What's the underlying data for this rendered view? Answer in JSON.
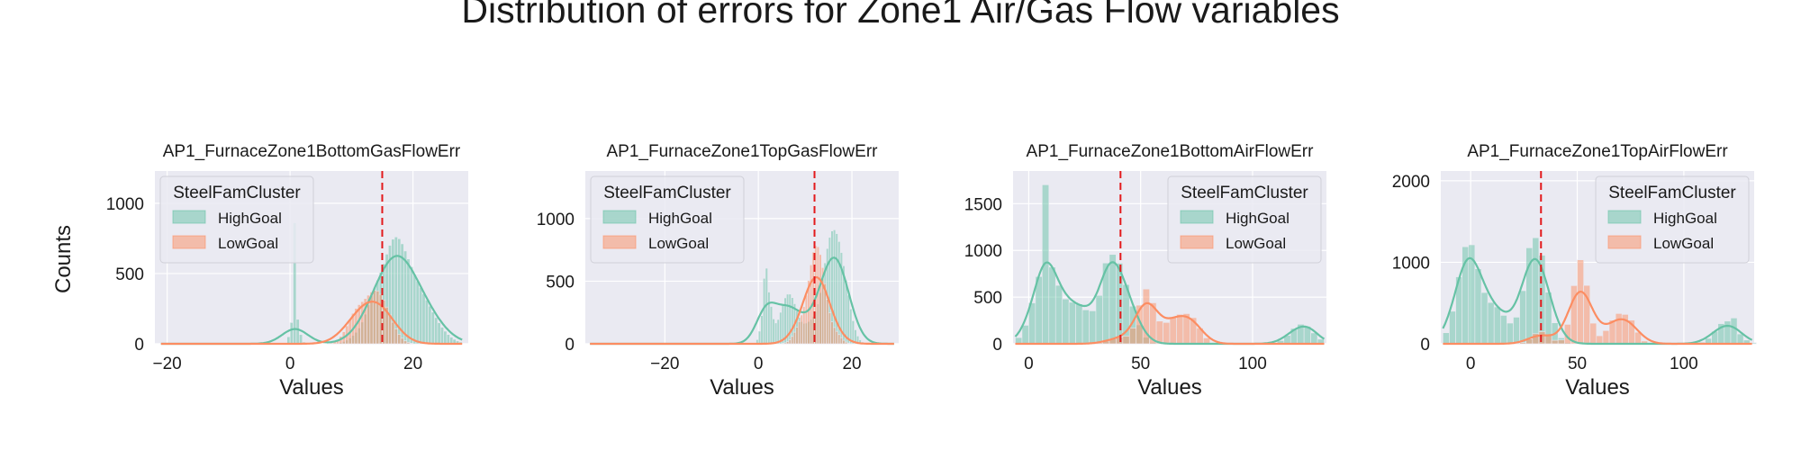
{
  "figure": {
    "title": "Distribution of errors for Zone1 Air/Gas Flow variables",
    "shared_ylabel": "Counts",
    "colors": {
      "HighGoal": "#66c2a5",
      "LowGoal": "#fc8d62",
      "axes_bg": "#eaeaf2",
      "grid": "#ffffff",
      "threshold_line": "#e31a1c"
    }
  },
  "chart_data": [
    {
      "type": "histogram",
      "title": "AP1_FurnaceZone1BottomGasFlowErr",
      "xlabel": "Values",
      "ylabel": "Counts",
      "xlim": [
        -22,
        29
      ],
      "ylim": [
        0,
        1230
      ],
      "xticks": [
        -20,
        0,
        20
      ],
      "yticks": [
        0,
        500,
        1000
      ],
      "legend": {
        "title": "SteelFamCluster",
        "entries": [
          "HighGoal",
          "LowGoal"
        ],
        "position": "upper left"
      },
      "threshold": 15,
      "bin_width": 0.5,
      "kde_y_unit": 10,
      "series": [
        {
          "name": "HighGoal",
          "peaks": [
            [
              0.8,
              0.6,
              230
            ],
            [
              0.8,
              0.12,
              690
            ],
            [
              11.5,
              1.6,
              70
            ],
            [
              13.5,
              1.2,
              170
            ],
            [
              16.8,
              2.0,
              650
            ],
            [
              20.5,
              2.3,
              340
            ],
            [
              24.0,
              2.0,
              60
            ]
          ]
        },
        {
          "name": "LowGoal",
          "peaks": [
            [
              11.0,
              1.6,
              230
            ],
            [
              13.8,
              1.4,
              260
            ],
            [
              15.7,
              1.5,
              160
            ]
          ]
        }
      ]
    },
    {
      "type": "histogram",
      "title": "AP1_FurnaceZone1TopGasFlowErr",
      "xlabel": "Values",
      "ylabel": "",
      "xlim": [
        -37,
        30
      ],
      "ylim": [
        0,
        1380
      ],
      "xticks": [
        -20,
        0,
        20
      ],
      "yticks": [
        0,
        500,
        1000
      ],
      "legend": {
        "title": "SteelFamCluster",
        "entries": [
          "HighGoal",
          "LowGoal"
        ],
        "position": "upper left"
      },
      "threshold": 12,
      "bin_width": 0.5,
      "kde_y_unit": 10,
      "series": [
        {
          "name": "HighGoal",
          "peaks": [
            [
              1.5,
              0.12,
              1330
            ],
            [
              1.8,
              0.9,
              440
            ],
            [
              6.5,
              1.8,
              400
            ],
            [
              11.0,
              1.3,
              120
            ],
            [
              15.8,
              2.0,
              860
            ],
            [
              18.5,
              1.5,
              220
            ]
          ]
        },
        {
          "name": "LowGoal",
          "peaks": [
            [
              9.5,
              1.5,
              180
            ],
            [
              11.8,
              1.2,
              480
            ],
            [
              13.5,
              1.3,
              480
            ],
            [
              16.5,
              1.2,
              80
            ]
          ]
        }
      ]
    },
    {
      "type": "histogram",
      "title": "AP1_FurnaceZone1BottomAirFlowErr",
      "xlabel": "Values",
      "ylabel": "",
      "xlim": [
        -7,
        133
      ],
      "ylim": [
        0,
        1850
      ],
      "xticks": [
        0,
        50,
        100
      ],
      "yticks": [
        0,
        500,
        1000,
        1500
      ],
      "legend": {
        "title": "SteelFamCluster",
        "entries": [
          "HighGoal",
          "LowGoal"
        ],
        "position": "upper right"
      },
      "threshold": 41,
      "bin_width": 3,
      "kde_y_unit": 12,
      "series": [
        {
          "name": "HighGoal",
          "peaks": [
            [
              7.5,
              0.5,
              820
            ],
            [
              8.0,
              5.5,
              880
            ],
            [
              22.0,
              5.0,
              390
            ],
            [
              35.5,
              0.5,
              500
            ],
            [
              37.5,
              5.0,
              930
            ],
            [
              46.0,
              4.0,
              220
            ],
            [
              122.0,
              5.0,
              210
            ],
            [
              126.0,
              0.5,
              170
            ]
          ]
        },
        {
          "name": "LowGoal",
          "peaks": [
            [
              41.0,
              5.0,
              70
            ],
            [
              52.5,
              3.5,
              570
            ],
            [
              65.0,
              5.0,
              260
            ],
            [
              73.0,
              4.0,
              220
            ]
          ]
        }
      ]
    },
    {
      "type": "histogram",
      "title": "AP1_FurnaceZone1TopAirFlowErr",
      "xlabel": "Values",
      "ylabel": "",
      "xlim": [
        -14,
        133
      ],
      "ylim": [
        0,
        2120
      ],
      "xticks": [
        0,
        50,
        100
      ],
      "yticks": [
        0,
        1000,
        2000
      ],
      "legend": {
        "title": "SteelFamCluster",
        "entries": [
          "HighGoal",
          "LowGoal"
        ],
        "position": "upper right"
      },
      "threshold": 33,
      "bin_width": 3,
      "kde_y_unit": 18,
      "series": [
        {
          "name": "HighGoal",
          "peaks": [
            [
              -1.0,
              0.5,
              760
            ],
            [
              -1.0,
              5.0,
              1230
            ],
            [
              12.0,
              5.0,
              420
            ],
            [
              28.5,
              0.5,
              650
            ],
            [
              30.5,
              5.0,
              1300
            ],
            [
              120.0,
              5.0,
              280
            ],
            [
              124.0,
              0.5,
              160
            ]
          ]
        },
        {
          "name": "LowGoal",
          "peaks": [
            [
              33.0,
              4.0,
              150
            ],
            [
              51.5,
              3.5,
              1030
            ],
            [
              70.0,
              5.0,
              370
            ],
            [
              76.0,
              2.5,
              90
            ]
          ]
        }
      ]
    }
  ]
}
